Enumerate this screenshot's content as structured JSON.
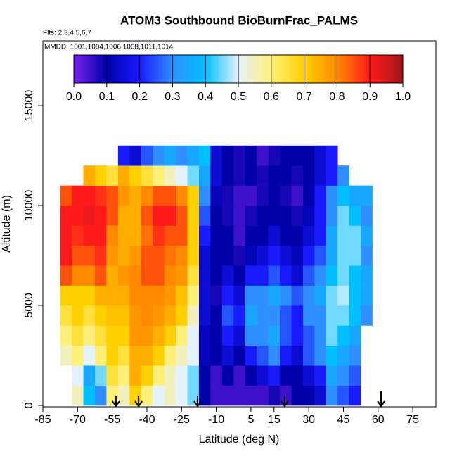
{
  "chart_data": {
    "type": "heatmap",
    "title": "ATOM3 Southbound BioBurnFrac_PALMS",
    "subtitle_lines": [
      "Flts: 2,3,4,5,6,7",
      "MMDD: 1001,1004,1006,1008,1011,1014"
    ],
    "x_label": "Latitude (deg N)",
    "y_label": "Altitude (m)",
    "xlim": [
      -85,
      85
    ],
    "ylim": [
      -70,
      18240
    ],
    "xticks": [
      -85,
      -70,
      -55,
      -40,
      -25,
      -10,
      5,
      15,
      30,
      45,
      60,
      75
    ],
    "yticks": [
      0,
      5000,
      10000,
      15000
    ],
    "x_edges": [
      -77.5,
      -72.5,
      -67.5,
      -62.5,
      -57.5,
      -52.5,
      -47.5,
      -42.5,
      -37.5,
      -32.5,
      -27.5,
      -22.5,
      -17.5,
      -12.5,
      -7.5,
      -2.5,
      2.5,
      7.5,
      12.5,
      17.5,
      22.5,
      27.5,
      32.5,
      37.5,
      42.5,
      47.5,
      52.5,
      57.5
    ],
    "y_edges": [
      0,
      1000,
      2000,
      3000,
      4000,
      5000,
      6000,
      7000,
      8000,
      9000,
      10000,
      11000,
      12000,
      13000
    ],
    "z": [
      [
        null,
        0.55,
        0.4,
        0.3,
        0.6,
        0.55,
        0.7,
        0.6,
        0.5,
        0.55,
        0.5,
        0.45,
        0.1,
        0.05,
        0.05,
        0.05,
        0.05,
        0.05,
        0.08,
        0.05,
        0.1,
        0.1,
        0.15,
        0.3,
        0.25,
        0.2,
        null
      ],
      [
        null,
        0.5,
        0.35,
        0.45,
        0.65,
        0.6,
        0.75,
        0.7,
        0.6,
        0.55,
        0.5,
        0.45,
        0.1,
        0.05,
        0.1,
        0.05,
        0.1,
        0.15,
        0.2,
        0.1,
        0.1,
        0.15,
        0.2,
        0.35,
        0.3,
        0.25,
        null
      ],
      [
        0.55,
        0.6,
        0.5,
        0.6,
        0.7,
        0.65,
        0.75,
        0.75,
        0.7,
        0.6,
        0.55,
        0.5,
        0.12,
        0.1,
        0.15,
        0.1,
        0.2,
        0.25,
        0.3,
        0.2,
        0.15,
        0.25,
        0.3,
        0.4,
        0.35,
        0.3,
        null
      ],
      [
        0.6,
        0.65,
        0.6,
        0.65,
        0.7,
        0.7,
        0.78,
        0.78,
        0.75,
        0.7,
        0.6,
        0.5,
        0.12,
        0.1,
        0.2,
        0.15,
        0.3,
        0.3,
        0.35,
        0.25,
        0.2,
        0.25,
        0.3,
        0.45,
        0.4,
        0.35,
        null
      ],
      [
        0.65,
        0.7,
        0.65,
        0.7,
        0.72,
        0.72,
        0.78,
        0.8,
        0.78,
        0.75,
        0.7,
        0.55,
        0.15,
        0.1,
        0.25,
        0.2,
        0.35,
        0.3,
        0.3,
        0.25,
        0.2,
        0.3,
        0.3,
        0.45,
        0.45,
        0.4,
        0.3
      ],
      [
        0.7,
        0.7,
        0.7,
        0.75,
        0.75,
        0.75,
        0.8,
        0.8,
        0.8,
        0.78,
        0.72,
        0.6,
        0.15,
        0.08,
        0.2,
        0.15,
        0.3,
        0.3,
        0.35,
        0.3,
        0.25,
        0.3,
        0.35,
        0.45,
        0.48,
        0.4,
        0.35
      ],
      [
        0.85,
        0.8,
        0.8,
        0.85,
        0.75,
        0.78,
        0.8,
        0.85,
        0.85,
        0.8,
        0.78,
        0.65,
        0.15,
        0.1,
        0.15,
        0.1,
        0.2,
        0.2,
        0.25,
        0.2,
        0.15,
        0.25,
        0.3,
        0.4,
        0.45,
        0.4,
        0.35
      ],
      [
        0.9,
        0.85,
        0.85,
        0.88,
        0.78,
        0.75,
        0.78,
        0.85,
        0.85,
        0.82,
        0.8,
        0.7,
        0.15,
        0.1,
        0.1,
        0.08,
        0.12,
        0.15,
        0.2,
        0.15,
        0.12,
        0.2,
        0.25,
        0.35,
        0.45,
        0.45,
        0.3
      ],
      [
        0.9,
        0.88,
        0.9,
        0.9,
        0.8,
        0.75,
        0.75,
        0.82,
        0.88,
        0.85,
        0.85,
        0.7,
        0.2,
        0.1,
        0.1,
        0.05,
        0.1,
        0.1,
        0.15,
        0.1,
        0.1,
        0.15,
        0.2,
        0.35,
        0.45,
        0.45,
        0.35
      ],
      [
        0.9,
        0.9,
        0.92,
        0.9,
        0.85,
        0.75,
        0.75,
        0.85,
        0.9,
        0.9,
        0.85,
        0.7,
        0.25,
        0.1,
        0.08,
        0.05,
        0.08,
        0.1,
        0.1,
        0.1,
        0.08,
        0.12,
        0.2,
        0.3,
        0.45,
        0.4,
        0.3
      ],
      [
        0.85,
        0.9,
        0.9,
        0.88,
        0.85,
        0.78,
        0.75,
        0.8,
        0.85,
        0.85,
        0.8,
        0.7,
        0.3,
        0.12,
        0.08,
        0.05,
        0.05,
        0.08,
        0.1,
        0.08,
        0.05,
        0.1,
        0.2,
        0.3,
        0.4,
        0.35,
        0.35
      ],
      [
        null,
        null,
        0.75,
        0.7,
        0.65,
        0.75,
        0.7,
        0.65,
        0.6,
        0.55,
        0.5,
        0.45,
        0.35,
        0.15,
        0.1,
        0.08,
        0.1,
        0.08,
        0.1,
        0.1,
        0.08,
        0.1,
        0.15,
        0.2,
        0.3,
        null,
        null
      ],
      [
        null,
        null,
        null,
        null,
        null,
        0.2,
        0.15,
        0.25,
        0.3,
        0.35,
        0.3,
        0.35,
        0.4,
        0.15,
        0.1,
        0.08,
        0.1,
        0.05,
        0.08,
        0.1,
        0.1,
        0.1,
        0.15,
        0.2,
        null,
        null,
        null
      ]
    ],
    "colorscale": [
      "#7a22ee",
      "#0000a8",
      "#1a1aff",
      "#2f8fff",
      "#00bfff",
      "#e4f2ff",
      "#fff07a",
      "#ffd000",
      "#ff8a00",
      "#ff1a1a",
      "#a01818"
    ],
    "colorbar_range": [
      0,
      1
    ],
    "colorbar_ticks": [
      {
        "value": 0,
        "label": "0.0"
      },
      0.1,
      0.2,
      0.3,
      0.4,
      0.5,
      0.6,
      0.7,
      0.8,
      0.9,
      {
        "value": 1,
        "label": "1.0"
      }
    ],
    "arrows": [
      -53.4,
      -43.6,
      -18.1,
      19.6,
      61.3
    ]
  }
}
